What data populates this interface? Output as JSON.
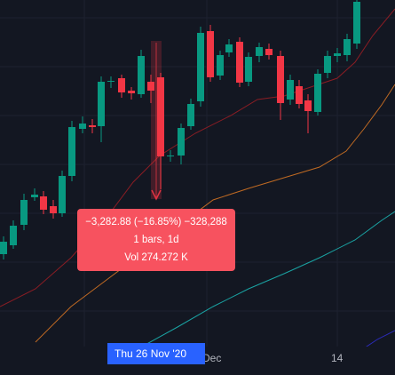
{
  "chart": {
    "up_color": "#089981",
    "down_color": "#f23645",
    "background": "#131722",
    "grid_color": "#1e2230"
  },
  "chart_data": {
    "type": "candlestick",
    "ma_lines": [
      {
        "color": "#8b1d24"
      },
      {
        "color": "#c06a23"
      },
      {
        "color": "#1aa3a3"
      },
      {
        "color": "#2b2bb8"
      }
    ]
  },
  "measure_tooltip": {
    "line1": "−3,282.88 (−16.85%) −328,288",
    "line2": "1 bars, 1d",
    "line3": "Vol 274.272 K"
  },
  "time_axis": {
    "crosshair_label": "Thu 26 Nov '20",
    "ticks": [
      "Dec",
      "14"
    ]
  }
}
